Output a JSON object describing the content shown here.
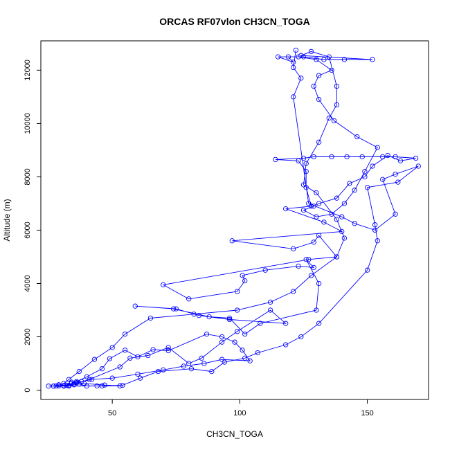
{
  "chart_data": {
    "type": "scatter",
    "title": "ORCAS RF07vlon CH3CN_TOGA",
    "xlabel": "CH3CN_TOGA",
    "ylabel": "Altitude (m)",
    "xlim": [
      22,
      174
    ],
    "ylim": [
      -350,
      13100
    ],
    "xticks": [
      50,
      100,
      150
    ],
    "yticks": [
      0,
      2000,
      4000,
      6000,
      8000,
      10000,
      12000
    ],
    "grid": false,
    "legend": "none",
    "point_style": "open-circle",
    "color": "#0000ff",
    "series": [
      {
        "values": [
          [
            27,
            150
          ],
          [
            29,
            160
          ],
          [
            31,
            150
          ],
          [
            33,
            180
          ],
          [
            35,
            200
          ],
          [
            37,
            230
          ],
          [
            40,
            150
          ],
          [
            46,
            160
          ],
          [
            53,
            160
          ],
          [
            47,
            190
          ],
          [
            39,
            250
          ],
          [
            36,
            280
          ],
          [
            34,
            300
          ],
          [
            38,
            320
          ],
          [
            42,
            400
          ],
          [
            50,
            450
          ],
          [
            60,
            600
          ],
          [
            70,
            760
          ],
          [
            78,
            900
          ],
          [
            86,
            1000
          ],
          [
            93,
            1150
          ],
          [
            104,
            1100
          ],
          [
            101,
            1500
          ],
          [
            98,
            1800
          ],
          [
            93,
            2000
          ],
          [
            87,
            2100
          ],
          [
            72,
            1480
          ],
          [
            66,
            1520
          ],
          [
            60,
            1250
          ],
          [
            55,
            1500
          ],
          [
            49,
            1180
          ],
          [
            46,
            800
          ],
          [
            40,
            500
          ],
          [
            36,
            320
          ],
          [
            34,
            250
          ],
          [
            32,
            180
          ],
          [
            29,
            200
          ],
          [
            27,
            150
          ],
          [
            31,
            170
          ],
          [
            35,
            230
          ],
          [
            41,
            400
          ],
          [
            53,
            870
          ],
          [
            57,
            1200
          ],
          [
            64,
            1300
          ],
          [
            72,
            1600
          ],
          [
            80,
            1000
          ],
          [
            85,
            1200
          ],
          [
            93,
            1800
          ],
          [
            99,
            2200
          ],
          [
            112,
            3000
          ],
          [
            118,
            2500
          ],
          [
            96,
            2650
          ],
          [
            84,
            2800
          ],
          [
            75,
            3050
          ],
          [
            59,
            3150
          ],
          [
            74,
            3050
          ],
          [
            88,
            2750
          ],
          [
            96,
            2700
          ],
          [
            102,
            2100
          ],
          [
            108,
            2500
          ],
          [
            130,
            3000
          ],
          [
            131,
            4000
          ],
          [
            126,
            4900
          ],
          [
            129,
            4600
          ],
          [
            123,
            4650
          ],
          [
            110,
            4500
          ],
          [
            101,
            4300
          ],
          [
            102,
            4100
          ],
          [
            99,
            3700
          ],
          [
            80,
            3420
          ],
          [
            70,
            3950
          ],
          [
            127,
            4900
          ],
          [
            138,
            5000
          ],
          [
            131,
            5800
          ],
          [
            129,
            5550
          ],
          [
            121,
            5300
          ],
          [
            97,
            5600
          ],
          [
            140,
            5950
          ],
          [
            133,
            6300
          ],
          [
            118,
            6800
          ],
          [
            128,
            6900
          ],
          [
            126,
            7600
          ],
          [
            126,
            8200
          ],
          [
            123,
            8600
          ],
          [
            114,
            8650
          ],
          [
            125,
            8700
          ],
          [
            129,
            8750
          ],
          [
            136,
            8750
          ],
          [
            142,
            8750
          ],
          [
            148,
            8750
          ],
          [
            156,
            8750
          ],
          [
            161,
            8750
          ],
          [
            169,
            8700
          ],
          [
            163,
            8600
          ],
          [
            158,
            8800
          ],
          [
            152,
            8400
          ],
          [
            149,
            8000
          ],
          [
            143,
            7750
          ],
          [
            138,
            7200
          ],
          [
            131,
            7000
          ],
          [
            129,
            6900
          ],
          [
            125,
            6750
          ],
          [
            130,
            6500
          ],
          [
            136,
            6600
          ],
          [
            141,
            7000
          ],
          [
            145,
            7500
          ],
          [
            149,
            8200
          ],
          [
            154,
            9100
          ],
          [
            146,
            9500
          ],
          [
            137,
            10100
          ],
          [
            131,
            10900
          ],
          [
            129,
            11400
          ],
          [
            131,
            11800
          ],
          [
            136,
            12000
          ],
          [
            130,
            12400
          ],
          [
            123,
            12500
          ],
          [
            119,
            12500
          ],
          [
            121,
            12300
          ],
          [
            115,
            12500
          ],
          [
            125,
            12500
          ],
          [
            133,
            12400
          ],
          [
            141,
            12400
          ],
          [
            152,
            12400
          ],
          [
            124,
            12550
          ],
          [
            128,
            12700
          ],
          [
            135,
            12500
          ],
          [
            138,
            11400
          ],
          [
            138,
            10700
          ],
          [
            135,
            10200
          ],
          [
            131,
            9300
          ],
          [
            126,
            8500
          ],
          [
            125,
            7700
          ],
          [
            130,
            7400
          ],
          [
            138,
            6400
          ],
          [
            141,
            5700
          ],
          [
            138,
            5000
          ],
          [
            128,
            4300
          ],
          [
            121,
            3700
          ],
          [
            112,
            3300
          ],
          [
            99,
            3000
          ],
          [
            82,
            2850
          ],
          [
            65,
            2700
          ],
          [
            55,
            2100
          ],
          [
            50,
            1600
          ],
          [
            43,
            1150
          ],
          [
            37,
            700
          ],
          [
            33,
            400
          ],
          [
            31,
            250
          ],
          [
            28,
            160
          ],
          [
            25,
            150
          ],
          [
            33,
            150
          ],
          [
            44,
            160
          ],
          [
            54,
            180
          ],
          [
            61,
            450
          ],
          [
            68,
            700
          ],
          [
            81,
            800
          ],
          [
            89,
            700
          ],
          [
            94,
            1050
          ],
          [
            102,
            1200
          ],
          [
            107,
            1400
          ],
          [
            118,
            1700
          ],
          [
            124,
            2000
          ],
          [
            131,
            2500
          ],
          [
            150,
            4500
          ],
          [
            154,
            5600
          ],
          [
            153,
            6200
          ],
          [
            150,
            7600
          ],
          [
            162,
            7800
          ],
          [
            170,
            8400
          ],
          [
            161,
            8100
          ],
          [
            156,
            7900
          ],
          [
            161,
            6600
          ],
          [
            153,
            6000
          ],
          [
            145,
            6250
          ],
          [
            140,
            6500
          ],
          [
            127,
            7000
          ],
          [
            121,
            11000
          ],
          [
            124,
            11700
          ],
          [
            121,
            12100
          ],
          [
            122,
            12750
          ]
        ]
      }
    ]
  }
}
